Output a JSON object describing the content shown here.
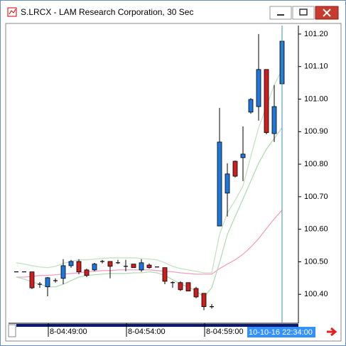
{
  "window": {
    "title": "S.LRCX - LAM Research Corporation, 30 Sec"
  },
  "chart_data": {
    "type": "candlestick",
    "open": [
      100.469,
      100.469,
      100.469,
      100.431,
      100.423,
      100.442,
      100.449,
      100.488,
      100.501,
      100.475,
      100.475,
      100.501,
      100.501,
      100.497,
      100.486,
      100.493,
      100.475,
      100.49,
      100.484,
      100.482,
      100.436,
      100.436,
      100.436,
      100.418,
      100.403,
      100.362,
      100.61,
      100.711,
      100.809,
      100.82,
      100.96,
      100.977,
      101.091,
      100.894,
      101.047
    ],
    "high": [
      100.469,
      100.469,
      100.469,
      100.438,
      100.453,
      100.449,
      100.508,
      100.506,
      100.508,
      100.479,
      100.497,
      100.506,
      100.501,
      100.506,
      100.506,
      100.493,
      100.508,
      100.495,
      100.484,
      100.482,
      100.44,
      100.44,
      100.436,
      100.423,
      100.403,
      100.37,
      100.973,
      100.803,
      100.811,
      100.916,
      101.003,
      101.2,
      101.091,
      101.043,
      101.178
    ],
    "low": [
      100.469,
      100.469,
      100.416,
      100.42,
      100.394,
      100.436,
      100.431,
      100.482,
      100.462,
      100.453,
      100.471,
      100.495,
      100.449,
      100.493,
      100.471,
      100.482,
      100.469,
      100.479,
      100.484,
      100.431,
      100.42,
      100.41,
      100.41,
      100.388,
      100.351,
      100.356,
      100.61,
      100.639,
      100.759,
      100.748,
      100.955,
      100.934,
      100.892,
      100.868,
      100.966
    ],
    "close": [
      100.469,
      100.469,
      100.42,
      100.431,
      100.451,
      100.442,
      100.488,
      100.501,
      100.469,
      100.458,
      100.493,
      100.501,
      100.486,
      100.497,
      100.486,
      100.482,
      100.497,
      100.482,
      100.484,
      100.44,
      100.436,
      100.414,
      100.41,
      100.392,
      100.362,
      100.362,
      100.868,
      100.77,
      100.763,
      100.831,
      100.999,
      101.091,
      100.897,
      100.977,
      101.178
    ],
    "up_color": "#1e78dc",
    "down_color": "#cc1e1e",
    "overlays": [
      {
        "color": "#c4e2c4",
        "values": [
          100.497,
          100.493,
          100.488,
          100.484,
          100.482,
          100.486,
          100.495,
          100.501,
          100.506,
          100.506,
          100.508,
          100.51,
          100.512,
          100.512,
          100.512,
          100.512,
          100.51,
          100.508,
          100.506,
          100.497,
          100.486,
          100.479,
          100.475,
          100.471,
          100.466,
          100.466,
          100.584,
          100.65,
          100.689,
          100.733,
          100.824,
          100.912,
          100.977,
          101.043,
          101.091
        ]
      },
      {
        "color": "#f2a0c0",
        "values": [
          100.453,
          100.453,
          100.455,
          100.458,
          100.458,
          100.46,
          100.462,
          100.464,
          100.466,
          100.469,
          100.471,
          100.473,
          100.473,
          100.475,
          100.475,
          100.475,
          100.475,
          100.475,
          100.473,
          100.471,
          100.469,
          100.466,
          100.464,
          100.462,
          100.462,
          100.462,
          100.479,
          100.493,
          100.506,
          100.523,
          100.545,
          100.571,
          100.602,
          100.632,
          100.659
        ]
      },
      {
        "color": "#b4dcb4",
        "values": [
          100.453,
          100.447,
          100.438,
          100.431,
          100.423,
          100.423,
          100.431,
          100.442,
          100.453,
          100.458,
          100.46,
          100.462,
          100.464,
          100.464,
          100.464,
          100.466,
          100.466,
          100.469,
          100.466,
          100.458,
          100.445,
          100.431,
          100.423,
          100.41,
          100.392,
          100.42,
          100.497,
          100.584,
          100.639,
          100.693,
          100.748,
          100.803,
          100.846,
          100.879,
          100.912
        ]
      }
    ],
    "ylim": [
      100.311,
      101.226
    ],
    "yticks": [
      {
        "value": 100.4,
        "label": "100.40"
      },
      {
        "value": 100.5,
        "label": "100.50"
      },
      {
        "value": 100.6,
        "label": "100.60"
      },
      {
        "value": 100.7,
        "label": "100.70"
      },
      {
        "value": 100.8,
        "label": "100.80"
      },
      {
        "value": 100.9,
        "label": "100.90"
      },
      {
        "value": 101.0,
        "label": "101.00"
      },
      {
        "value": 101.1,
        "label": "101.10"
      },
      {
        "value": 101.2,
        "label": "101.20"
      }
    ],
    "xticks": [
      {
        "value": 4,
        "label": "8-04:49:00"
      },
      {
        "value": 14,
        "label": "8-04:54:00"
      },
      {
        "value": 24,
        "label": "8-04:59:00"
      }
    ],
    "cursor_label": "10-10-16 22:34:00"
  }
}
